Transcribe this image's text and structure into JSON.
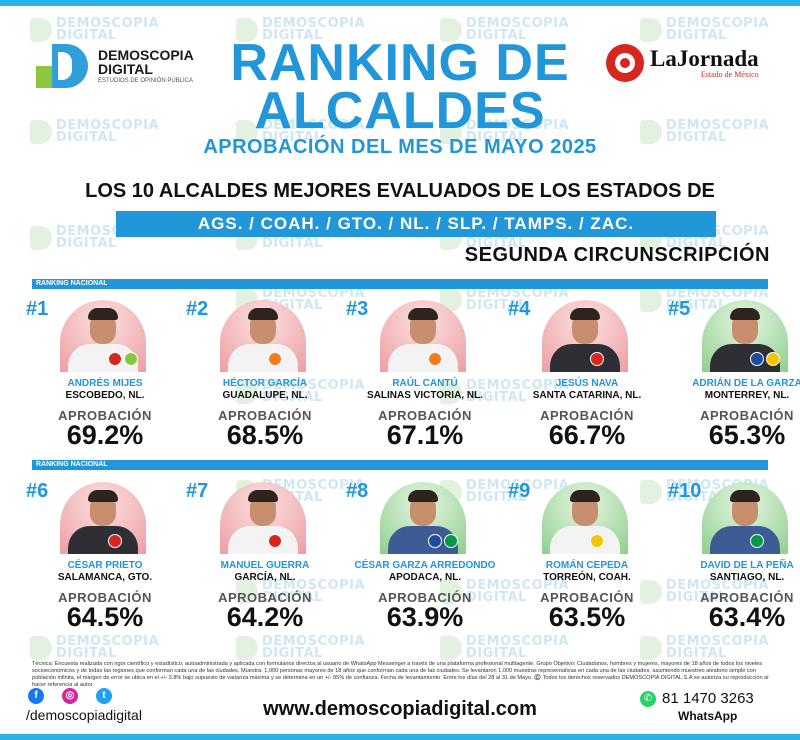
{
  "header": {
    "brand_name": "DEMOSCOPIA DIGITAL",
    "brand_tagline": "ESTUDIOS DE OPINIÓN PÚBLICA",
    "partner_name": "LaJornada",
    "partner_sub": "Estado de México",
    "title_line1": "RANKING DE",
    "title_line2": "ALCALDES",
    "subtitle": "APROBACIÓN DEL MES DE MAYO 2025",
    "description": "LOS 10 ALCALDES MEJORES EVALUADOS DE LOS ESTADOS DE",
    "states": "AGS. / COAH. / GTO. / NL. / SLP. / TAMPS. / ZAC.",
    "circumscription": "SEGUNDA CIRCUNSCRIPCIÓN"
  },
  "watermark_text": "DEMOSCOPIA DIGITAL",
  "section_label": "RANKING NACIONAL",
  "approval_label": "APROBACIÓN",
  "mayors": [
    {
      "rank": "#1",
      "name": "ANDRÉS MIJES",
      "place": "ESCOBEDO, NL.",
      "approval": "69.2%",
      "approval_value": 69.2,
      "bg": "red"
    },
    {
      "rank": "#2",
      "name": "HÉCTOR GARCÍA",
      "place": "GUADALUPE, NL.",
      "approval": "68.5%",
      "approval_value": 68.5,
      "bg": "red"
    },
    {
      "rank": "#3",
      "name": "RAÚL CANTÚ",
      "place": "SALINAS VICTORIA, NL.",
      "approval": "67.1%",
      "approval_value": 67.1,
      "bg": "red"
    },
    {
      "rank": "#4",
      "name": "JESÚS NAVA",
      "place": "SANTA CATARINA, NL.",
      "approval": "66.7%",
      "approval_value": 66.7,
      "bg": "red"
    },
    {
      "rank": "#5",
      "name": "ADRIÁN DE LA GARZA",
      "place": "MONTERREY, NL.",
      "approval": "65.3%",
      "approval_value": 65.3,
      "bg": "green"
    },
    {
      "rank": "#6",
      "name": "CÉSAR PRIETO",
      "place": "SALAMANCA, GTO.",
      "approval": "64.5%",
      "approval_value": 64.5,
      "bg": "red"
    },
    {
      "rank": "#7",
      "name": "MANUEL GUERRA",
      "place": "GARCÍA, NL.",
      "approval": "64.2%",
      "approval_value": 64.2,
      "bg": "red"
    },
    {
      "rank": "#8",
      "name": "CÉSAR GARZA ARREDONDO",
      "place": "APODACA, NL.",
      "approval": "63.9%",
      "approval_value": 63.9,
      "bg": "green"
    },
    {
      "rank": "#9",
      "name": "ROMÁN CEPEDA",
      "place": "TORREÓN, COAH.",
      "approval": "63.5%",
      "approval_value": 63.5,
      "bg": "green"
    },
    {
      "rank": "#10",
      "name": "DAVID DE LA PEÑA",
      "place": "SANTIAGO, NL.",
      "approval": "63.4%",
      "approval_value": 63.4,
      "bg": "green"
    }
  ],
  "footer": {
    "technical_note": "Técnica: Encuesta realizada con rigor científico y estadístico, autoadministrada y aplicada con formularios directos al usuario de WhatsApp Messenger a través de una plataforma profesional multiagente. Grupo Objetivo: Ciudadanos, hombres y mujeres, mayores de 18 años de todos los niveles socioeconómicos y de todas las regiones que conforman cada una de las ciudades. Muestra: 1,000 personas mayores de 18 años que conforman cada una de las ciudades. Se levantaron 1,000 muestras representativas en cada una de las ciudades, asumiendo muestreo aleatorio simple con población infinita, el margen de error se ubica en el +/- 3.8% bajo supuesto de varianza máxima y se determina en un +/- 95% de confianza. Fecha de levantamiento: Entre los días del 28 al 31 de Mayo. ©️ Todos los derechos reservados DEMOSCOPIA DIGITAL.S.A se autoriza su reproducción al hacer referencia al autor.",
    "social_handle": "/demoscopiadigital",
    "website": "www.demoscopiadigital.com",
    "phone": "81 1470 3263",
    "phone_label": "WhatsApp",
    "icons": [
      "facebook-icon",
      "instagram-icon",
      "twitter-icon",
      "whatsapp-icon"
    ]
  },
  "colors": {
    "accent": "#2196d8",
    "green": "#8cc63f",
    "red": "#d7261e"
  }
}
